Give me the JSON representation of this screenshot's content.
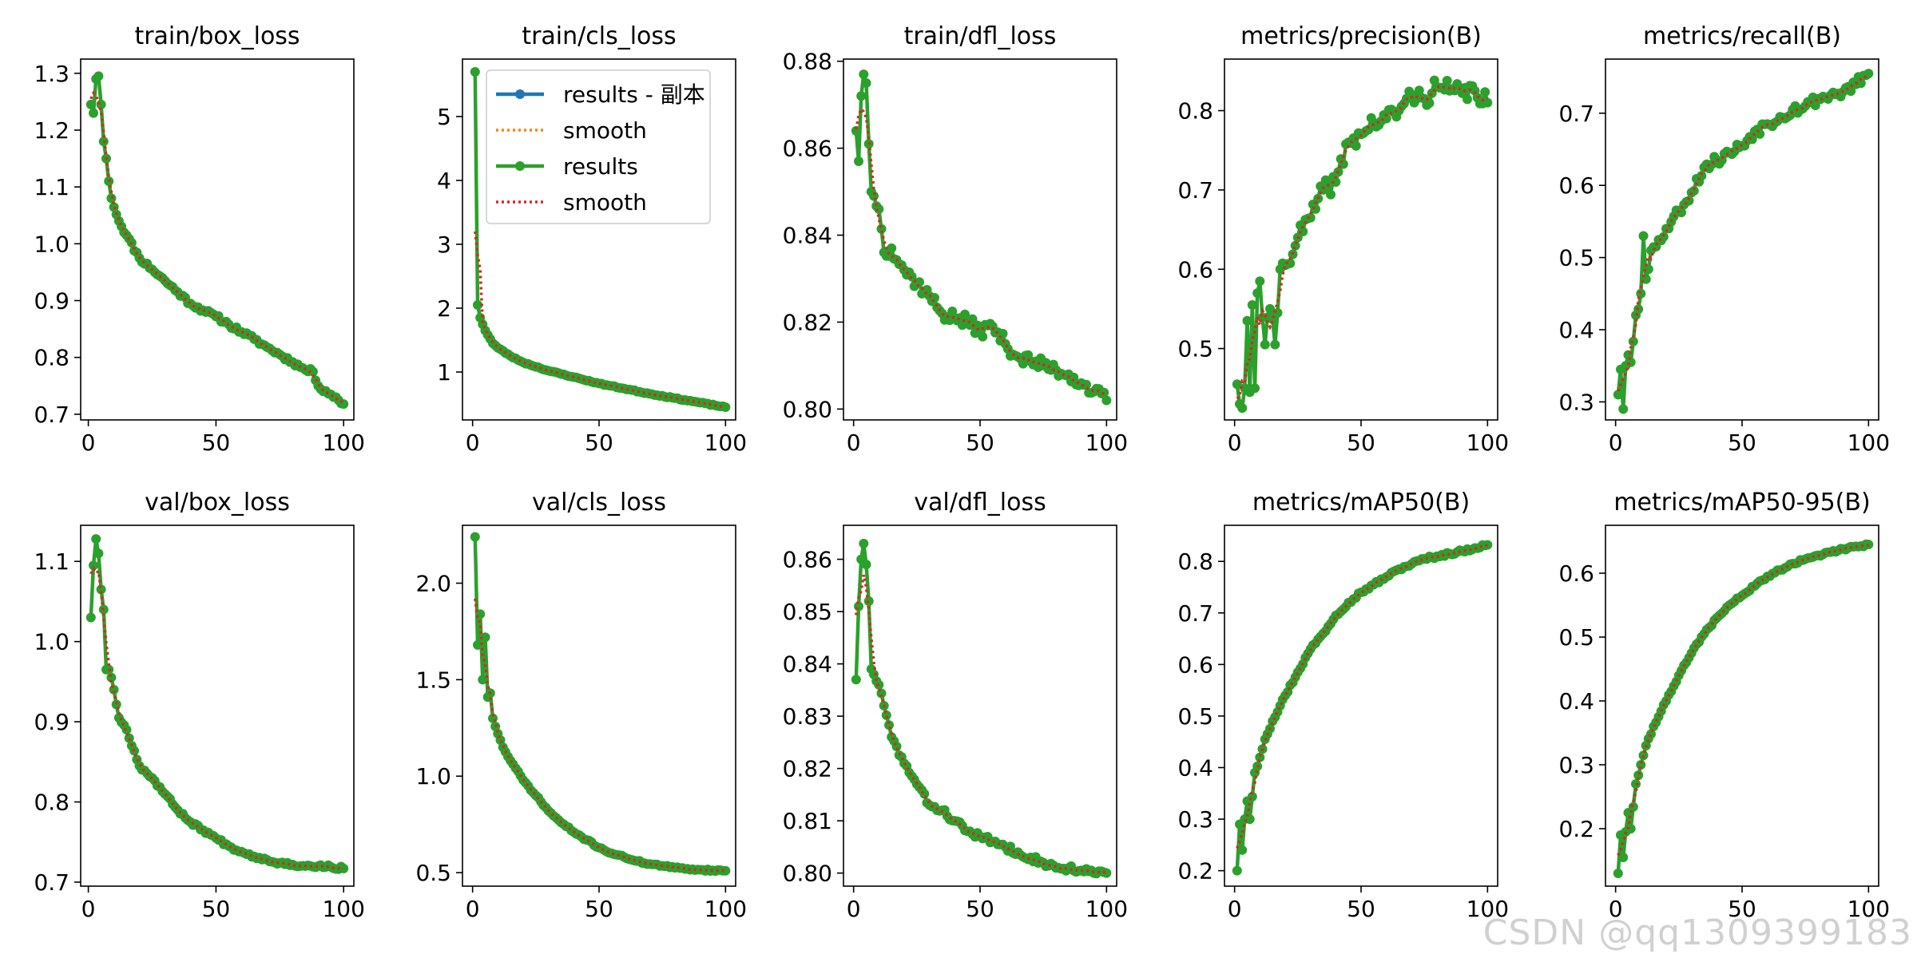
{
  "figure": {
    "watermark": "CSDN @qq1309399183",
    "colors": {
      "results_blue": "#1f77b4",
      "smooth_orange": "#ff7f0e",
      "results_green": "#2ca02c",
      "smooth_red": "#d62728",
      "axis": "#000000",
      "background": "#ffffff"
    }
  },
  "chart_data": [
    {
      "id": "train-box-loss",
      "type": "line",
      "title": "train/box_loss",
      "xlim": [
        -3,
        104
      ],
      "ylim": [
        0.69,
        1.325
      ],
      "xticks": [
        0,
        50,
        100
      ],
      "yticks": [
        0.7,
        0.8,
        0.9,
        1.0,
        1.1,
        1.2,
        1.3
      ],
      "ytick_labels": [
        "0.7",
        "0.8",
        "0.9",
        "1.0",
        "1.1",
        "1.2",
        "1.3"
      ],
      "anchors": [
        [
          1,
          1.245
        ],
        [
          2,
          1.23
        ],
        [
          3,
          1.29
        ],
        [
          4,
          1.295
        ],
        [
          5,
          1.245
        ],
        [
          6,
          1.18
        ],
        [
          7,
          1.15
        ],
        [
          8,
          1.11
        ],
        [
          9,
          1.08
        ],
        [
          12,
          1.04
        ],
        [
          15,
          1.015
        ],
        [
          20,
          0.975
        ],
        [
          25,
          0.955
        ],
        [
          30,
          0.935
        ],
        [
          35,
          0.915
        ],
        [
          40,
          0.895
        ],
        [
          45,
          0.883
        ],
        [
          50,
          0.872
        ],
        [
          55,
          0.858
        ],
        [
          60,
          0.845
        ],
        [
          65,
          0.832
        ],
        [
          70,
          0.818
        ],
        [
          75,
          0.805
        ],
        [
          80,
          0.792
        ],
        [
          85,
          0.778
        ],
        [
          88,
          0.775
        ],
        [
          90,
          0.75
        ],
        [
          95,
          0.735
        ],
        [
          100,
          0.718
        ]
      ],
      "noise": 0.004,
      "seed": 11
    },
    {
      "id": "train-cls-loss",
      "type": "line",
      "title": "train/cls_loss",
      "xlim": [
        -4,
        104
      ],
      "ylim": [
        0.25,
        5.9
      ],
      "xticks": [
        0,
        50,
        100
      ],
      "yticks": [
        1,
        2,
        3,
        4,
        5
      ],
      "ytick_labels": [
        "1",
        "2",
        "3",
        "4",
        "5"
      ],
      "anchors": [
        [
          1,
          5.7
        ],
        [
          2,
          2.05
        ],
        [
          3,
          1.85
        ],
        [
          5,
          1.65
        ],
        [
          8,
          1.45
        ],
        [
          10,
          1.38
        ],
        [
          15,
          1.25
        ],
        [
          20,
          1.15
        ],
        [
          30,
          1.02
        ],
        [
          40,
          0.92
        ],
        [
          50,
          0.82
        ],
        [
          60,
          0.74
        ],
        [
          70,
          0.66
        ],
        [
          80,
          0.59
        ],
        [
          90,
          0.52
        ],
        [
          100,
          0.45
        ]
      ],
      "noise": 0.008,
      "seed": 23,
      "legend": [
        {
          "label": "results - 副本",
          "style": "line-marker",
          "color": "#1f77b4"
        },
        {
          "label": "smooth",
          "style": "dotted",
          "color": "#ff7f0e"
        },
        {
          "label": "results",
          "style": "line-marker",
          "color": "#2ca02c"
        },
        {
          "label": "smooth",
          "style": "dotted",
          "color": "#d62728"
        }
      ]
    },
    {
      "id": "train-dfl-loss",
      "type": "line",
      "title": "train/dfl_loss",
      "xlim": [
        -4,
        104
      ],
      "ylim": [
        0.7975,
        0.8805
      ],
      "xticks": [
        0,
        50,
        100
      ],
      "yticks": [
        0.8,
        0.82,
        0.84,
        0.86,
        0.88
      ],
      "ytick_labels": [
        "0.80",
        "0.82",
        "0.84",
        "0.86",
        "0.88"
      ],
      "anchors": [
        [
          1,
          0.864
        ],
        [
          2,
          0.857
        ],
        [
          3,
          0.872
        ],
        [
          4,
          0.877
        ],
        [
          5,
          0.875
        ],
        [
          6,
          0.861
        ],
        [
          7,
          0.85
        ],
        [
          8,
          0.849
        ],
        [
          10,
          0.846
        ],
        [
          12,
          0.836
        ],
        [
          15,
          0.837
        ],
        [
          20,
          0.832
        ],
        [
          25,
          0.829
        ],
        [
          30,
          0.826
        ],
        [
          35,
          0.822
        ],
        [
          40,
          0.821
        ],
        [
          45,
          0.82
        ],
        [
          50,
          0.818
        ],
        [
          55,
          0.819
        ],
        [
          60,
          0.815
        ],
        [
          65,
          0.812
        ],
        [
          70,
          0.811
        ],
        [
          75,
          0.81
        ],
        [
          80,
          0.809
        ],
        [
          85,
          0.808
        ],
        [
          90,
          0.806
        ],
        [
          95,
          0.804
        ],
        [
          100,
          0.802
        ]
      ],
      "noise": 0.0016,
      "seed": 37
    },
    {
      "id": "metrics-precision",
      "type": "line",
      "title": "metrics/precision(B)",
      "xlim": [
        -4,
        104
      ],
      "ylim": [
        0.41,
        0.865
      ],
      "xticks": [
        0,
        50,
        100
      ],
      "yticks": [
        0.5,
        0.6,
        0.7,
        0.8
      ],
      "ytick_labels": [
        "0.5",
        "0.6",
        "0.7",
        "0.8"
      ],
      "anchors": [
        [
          1,
          0.455
        ],
        [
          2,
          0.43
        ],
        [
          3,
          0.425
        ],
        [
          4,
          0.45
        ],
        [
          5,
          0.535
        ],
        [
          6,
          0.445
        ],
        [
          7,
          0.555
        ],
        [
          8,
          0.45
        ],
        [
          9,
          0.57
        ],
        [
          10,
          0.585
        ],
        [
          12,
          0.505
        ],
        [
          14,
          0.55
        ],
        [
          16,
          0.505
        ],
        [
          18,
          0.6
        ],
        [
          20,
          0.605
        ],
        [
          25,
          0.64
        ],
        [
          30,
          0.665
        ],
        [
          35,
          0.7
        ],
        [
          40,
          0.71
        ],
        [
          45,
          0.76
        ],
        [
          50,
          0.77
        ],
        [
          55,
          0.785
        ],
        [
          60,
          0.79
        ],
        [
          65,
          0.8
        ],
        [
          70,
          0.82
        ],
        [
          75,
          0.815
        ],
        [
          80,
          0.83
        ],
        [
          85,
          0.825
        ],
        [
          90,
          0.822
        ],
        [
          95,
          0.825
        ],
        [
          100,
          0.81
        ]
      ],
      "noise": 0.012,
      "seed": 41
    },
    {
      "id": "metrics-recall",
      "type": "line",
      "title": "metrics/recall(B)",
      "xlim": [
        -4,
        104
      ],
      "ylim": [
        0.275,
        0.775
      ],
      "xticks": [
        0,
        50,
        100
      ],
      "yticks": [
        0.3,
        0.4,
        0.5,
        0.6,
        0.7
      ],
      "ytick_labels": [
        "0.3",
        "0.4",
        "0.5",
        "0.6",
        "0.7"
      ],
      "anchors": [
        [
          1,
          0.31
        ],
        [
          2,
          0.345
        ],
        [
          3,
          0.29
        ],
        [
          4,
          0.35
        ],
        [
          5,
          0.365
        ],
        [
          6,
          0.355
        ],
        [
          8,
          0.42
        ],
        [
          10,
          0.45
        ],
        [
          11,
          0.53
        ],
        [
          12,
          0.47
        ],
        [
          14,
          0.51
        ],
        [
          16,
          0.515
        ],
        [
          20,
          0.54
        ],
        [
          25,
          0.565
        ],
        [
          30,
          0.59
        ],
        [
          35,
          0.625
        ],
        [
          40,
          0.635
        ],
        [
          45,
          0.645
        ],
        [
          50,
          0.655
        ],
        [
          55,
          0.675
        ],
        [
          60,
          0.685
        ],
        [
          65,
          0.695
        ],
        [
          70,
          0.705
        ],
        [
          75,
          0.71
        ],
        [
          80,
          0.72
        ],
        [
          85,
          0.725
        ],
        [
          90,
          0.73
        ],
        [
          95,
          0.74
        ],
        [
          100,
          0.755
        ]
      ],
      "noise": 0.008,
      "seed": 53
    },
    {
      "id": "val-box-loss",
      "type": "line",
      "title": "val/box_loss",
      "xlim": [
        -3,
        104
      ],
      "ylim": [
        0.695,
        1.145
      ],
      "xticks": [
        0,
        50,
        100
      ],
      "yticks": [
        0.7,
        0.8,
        0.9,
        1.0,
        1.1
      ],
      "ytick_labels": [
        "0.7",
        "0.8",
        "0.9",
        "1.0",
        "1.1"
      ],
      "anchors": [
        [
          1,
          1.03
        ],
        [
          2,
          1.095
        ],
        [
          3,
          1.128
        ],
        [
          4,
          1.11
        ],
        [
          5,
          1.065
        ],
        [
          6,
          1.04
        ],
        [
          7,
          0.965
        ],
        [
          8,
          0.965
        ],
        [
          9,
          0.955
        ],
        [
          10,
          0.94
        ],
        [
          12,
          0.905
        ],
        [
          15,
          0.89
        ],
        [
          20,
          0.845
        ],
        [
          25,
          0.83
        ],
        [
          30,
          0.81
        ],
        [
          35,
          0.79
        ],
        [
          40,
          0.775
        ],
        [
          45,
          0.765
        ],
        [
          50,
          0.755
        ],
        [
          55,
          0.745
        ],
        [
          60,
          0.738
        ],
        [
          65,
          0.732
        ],
        [
          70,
          0.728
        ],
        [
          75,
          0.724
        ],
        [
          80,
          0.722
        ],
        [
          85,
          0.72
        ],
        [
          90,
          0.72
        ],
        [
          95,
          0.719
        ],
        [
          100,
          0.717
        ]
      ],
      "noise": 0.002,
      "seed": 67
    },
    {
      "id": "val-cls-loss",
      "type": "line",
      "title": "val/cls_loss",
      "xlim": [
        -4,
        104
      ],
      "ylim": [
        0.43,
        2.3
      ],
      "xticks": [
        0,
        50,
        100
      ],
      "yticks": [
        0.5,
        1.0,
        1.5,
        2.0
      ],
      "ytick_labels": [
        "0.5",
        "1.0",
        "1.5",
        "2.0"
      ],
      "anchors": [
        [
          1,
          2.24
        ],
        [
          2,
          1.68
        ],
        [
          3,
          1.84
        ],
        [
          4,
          1.5
        ],
        [
          5,
          1.72
        ],
        [
          6,
          1.41
        ],
        [
          7,
          1.43
        ],
        [
          8,
          1.3
        ],
        [
          10,
          1.22
        ],
        [
          12,
          1.15
        ],
        [
          15,
          1.08
        ],
        [
          20,
          0.98
        ],
        [
          25,
          0.9
        ],
        [
          30,
          0.82
        ],
        [
          35,
          0.76
        ],
        [
          40,
          0.71
        ],
        [
          45,
          0.67
        ],
        [
          50,
          0.63
        ],
        [
          55,
          0.6
        ],
        [
          60,
          0.58
        ],
        [
          65,
          0.56
        ],
        [
          70,
          0.545
        ],
        [
          75,
          0.535
        ],
        [
          80,
          0.525
        ],
        [
          85,
          0.52
        ],
        [
          90,
          0.515
        ],
        [
          95,
          0.512
        ],
        [
          100,
          0.51
        ]
      ],
      "noise": 0.005,
      "seed": 71
    },
    {
      "id": "val-dfl-loss",
      "type": "line",
      "title": "val/dfl_loss",
      "xlim": [
        -4,
        104
      ],
      "ylim": [
        0.7975,
        0.8665
      ],
      "xticks": [
        0,
        50,
        100
      ],
      "yticks": [
        0.8,
        0.81,
        0.82,
        0.83,
        0.84,
        0.85,
        0.86
      ],
      "ytick_labels": [
        "0.80",
        "0.81",
        "0.82",
        "0.83",
        "0.84",
        "0.85",
        "0.86"
      ],
      "anchors": [
        [
          1,
          0.837
        ],
        [
          2,
          0.851
        ],
        [
          3,
          0.86
        ],
        [
          4,
          0.863
        ],
        [
          5,
          0.859
        ],
        [
          6,
          0.852
        ],
        [
          7,
          0.839
        ],
        [
          8,
          0.838
        ],
        [
          10,
          0.836
        ],
        [
          12,
          0.832
        ],
        [
          15,
          0.826
        ],
        [
          20,
          0.821
        ],
        [
          25,
          0.817
        ],
        [
          30,
          0.813
        ],
        [
          35,
          0.812
        ],
        [
          40,
          0.81
        ],
        [
          45,
          0.808
        ],
        [
          50,
          0.807
        ],
        [
          55,
          0.806
        ],
        [
          60,
          0.805
        ],
        [
          65,
          0.804
        ],
        [
          70,
          0.803
        ],
        [
          75,
          0.802
        ],
        [
          80,
          0.801
        ],
        [
          85,
          0.801
        ],
        [
          90,
          0.8005
        ],
        [
          95,
          0.8
        ],
        [
          100,
          0.8
        ]
      ],
      "noise": 0.0006,
      "seed": 83
    },
    {
      "id": "metrics-map50",
      "type": "line",
      "title": "metrics/mAP50(B)",
      "xlim": [
        -4,
        104
      ],
      "ylim": [
        0.17,
        0.87
      ],
      "xticks": [
        0,
        50,
        100
      ],
      "yticks": [
        0.2,
        0.3,
        0.4,
        0.5,
        0.6,
        0.7,
        0.8
      ],
      "ytick_labels": [
        "0.2",
        "0.3",
        "0.4",
        "0.5",
        "0.6",
        "0.7",
        "0.8"
      ],
      "anchors": [
        [
          1,
          0.2
        ],
        [
          2,
          0.29
        ],
        [
          3,
          0.24
        ],
        [
          4,
          0.3
        ],
        [
          5,
          0.335
        ],
        [
          6,
          0.3
        ],
        [
          8,
          0.39
        ],
        [
          10,
          0.42
        ],
        [
          12,
          0.455
        ],
        [
          15,
          0.49
        ],
        [
          20,
          0.54
        ],
        [
          25,
          0.585
        ],
        [
          30,
          0.63
        ],
        [
          35,
          0.66
        ],
        [
          40,
          0.695
        ],
        [
          45,
          0.72
        ],
        [
          50,
          0.74
        ],
        [
          55,
          0.755
        ],
        [
          60,
          0.77
        ],
        [
          65,
          0.785
        ],
        [
          70,
          0.795
        ],
        [
          75,
          0.805
        ],
        [
          80,
          0.81
        ],
        [
          85,
          0.815
        ],
        [
          90,
          0.82
        ],
        [
          95,
          0.826
        ],
        [
          100,
          0.832
        ]
      ],
      "noise": 0.003,
      "seed": 97
    },
    {
      "id": "metrics-map50-95",
      "type": "line",
      "title": "metrics/mAP50-95(B)",
      "xlim": [
        -4,
        104
      ],
      "ylim": [
        0.11,
        0.675
      ],
      "xticks": [
        0,
        50,
        100
      ],
      "yticks": [
        0.2,
        0.3,
        0.4,
        0.5,
        0.6
      ],
      "ytick_labels": [
        "0.2",
        "0.3",
        "0.4",
        "0.5",
        "0.6"
      ],
      "anchors": [
        [
          1,
          0.13
        ],
        [
          2,
          0.19
        ],
        [
          3,
          0.155
        ],
        [
          4,
          0.195
        ],
        [
          5,
          0.225
        ],
        [
          6,
          0.2
        ],
        [
          8,
          0.27
        ],
        [
          10,
          0.3
        ],
        [
          12,
          0.33
        ],
        [
          15,
          0.36
        ],
        [
          20,
          0.4
        ],
        [
          25,
          0.44
        ],
        [
          30,
          0.475
        ],
        [
          35,
          0.505
        ],
        [
          40,
          0.53
        ],
        [
          45,
          0.55
        ],
        [
          50,
          0.565
        ],
        [
          55,
          0.58
        ],
        [
          60,
          0.595
        ],
        [
          65,
          0.605
        ],
        [
          70,
          0.615
        ],
        [
          75,
          0.622
        ],
        [
          80,
          0.628
        ],
        [
          85,
          0.633
        ],
        [
          90,
          0.638
        ],
        [
          95,
          0.642
        ],
        [
          100,
          0.645
        ]
      ],
      "noise": 0.002,
      "seed": 109
    }
  ]
}
